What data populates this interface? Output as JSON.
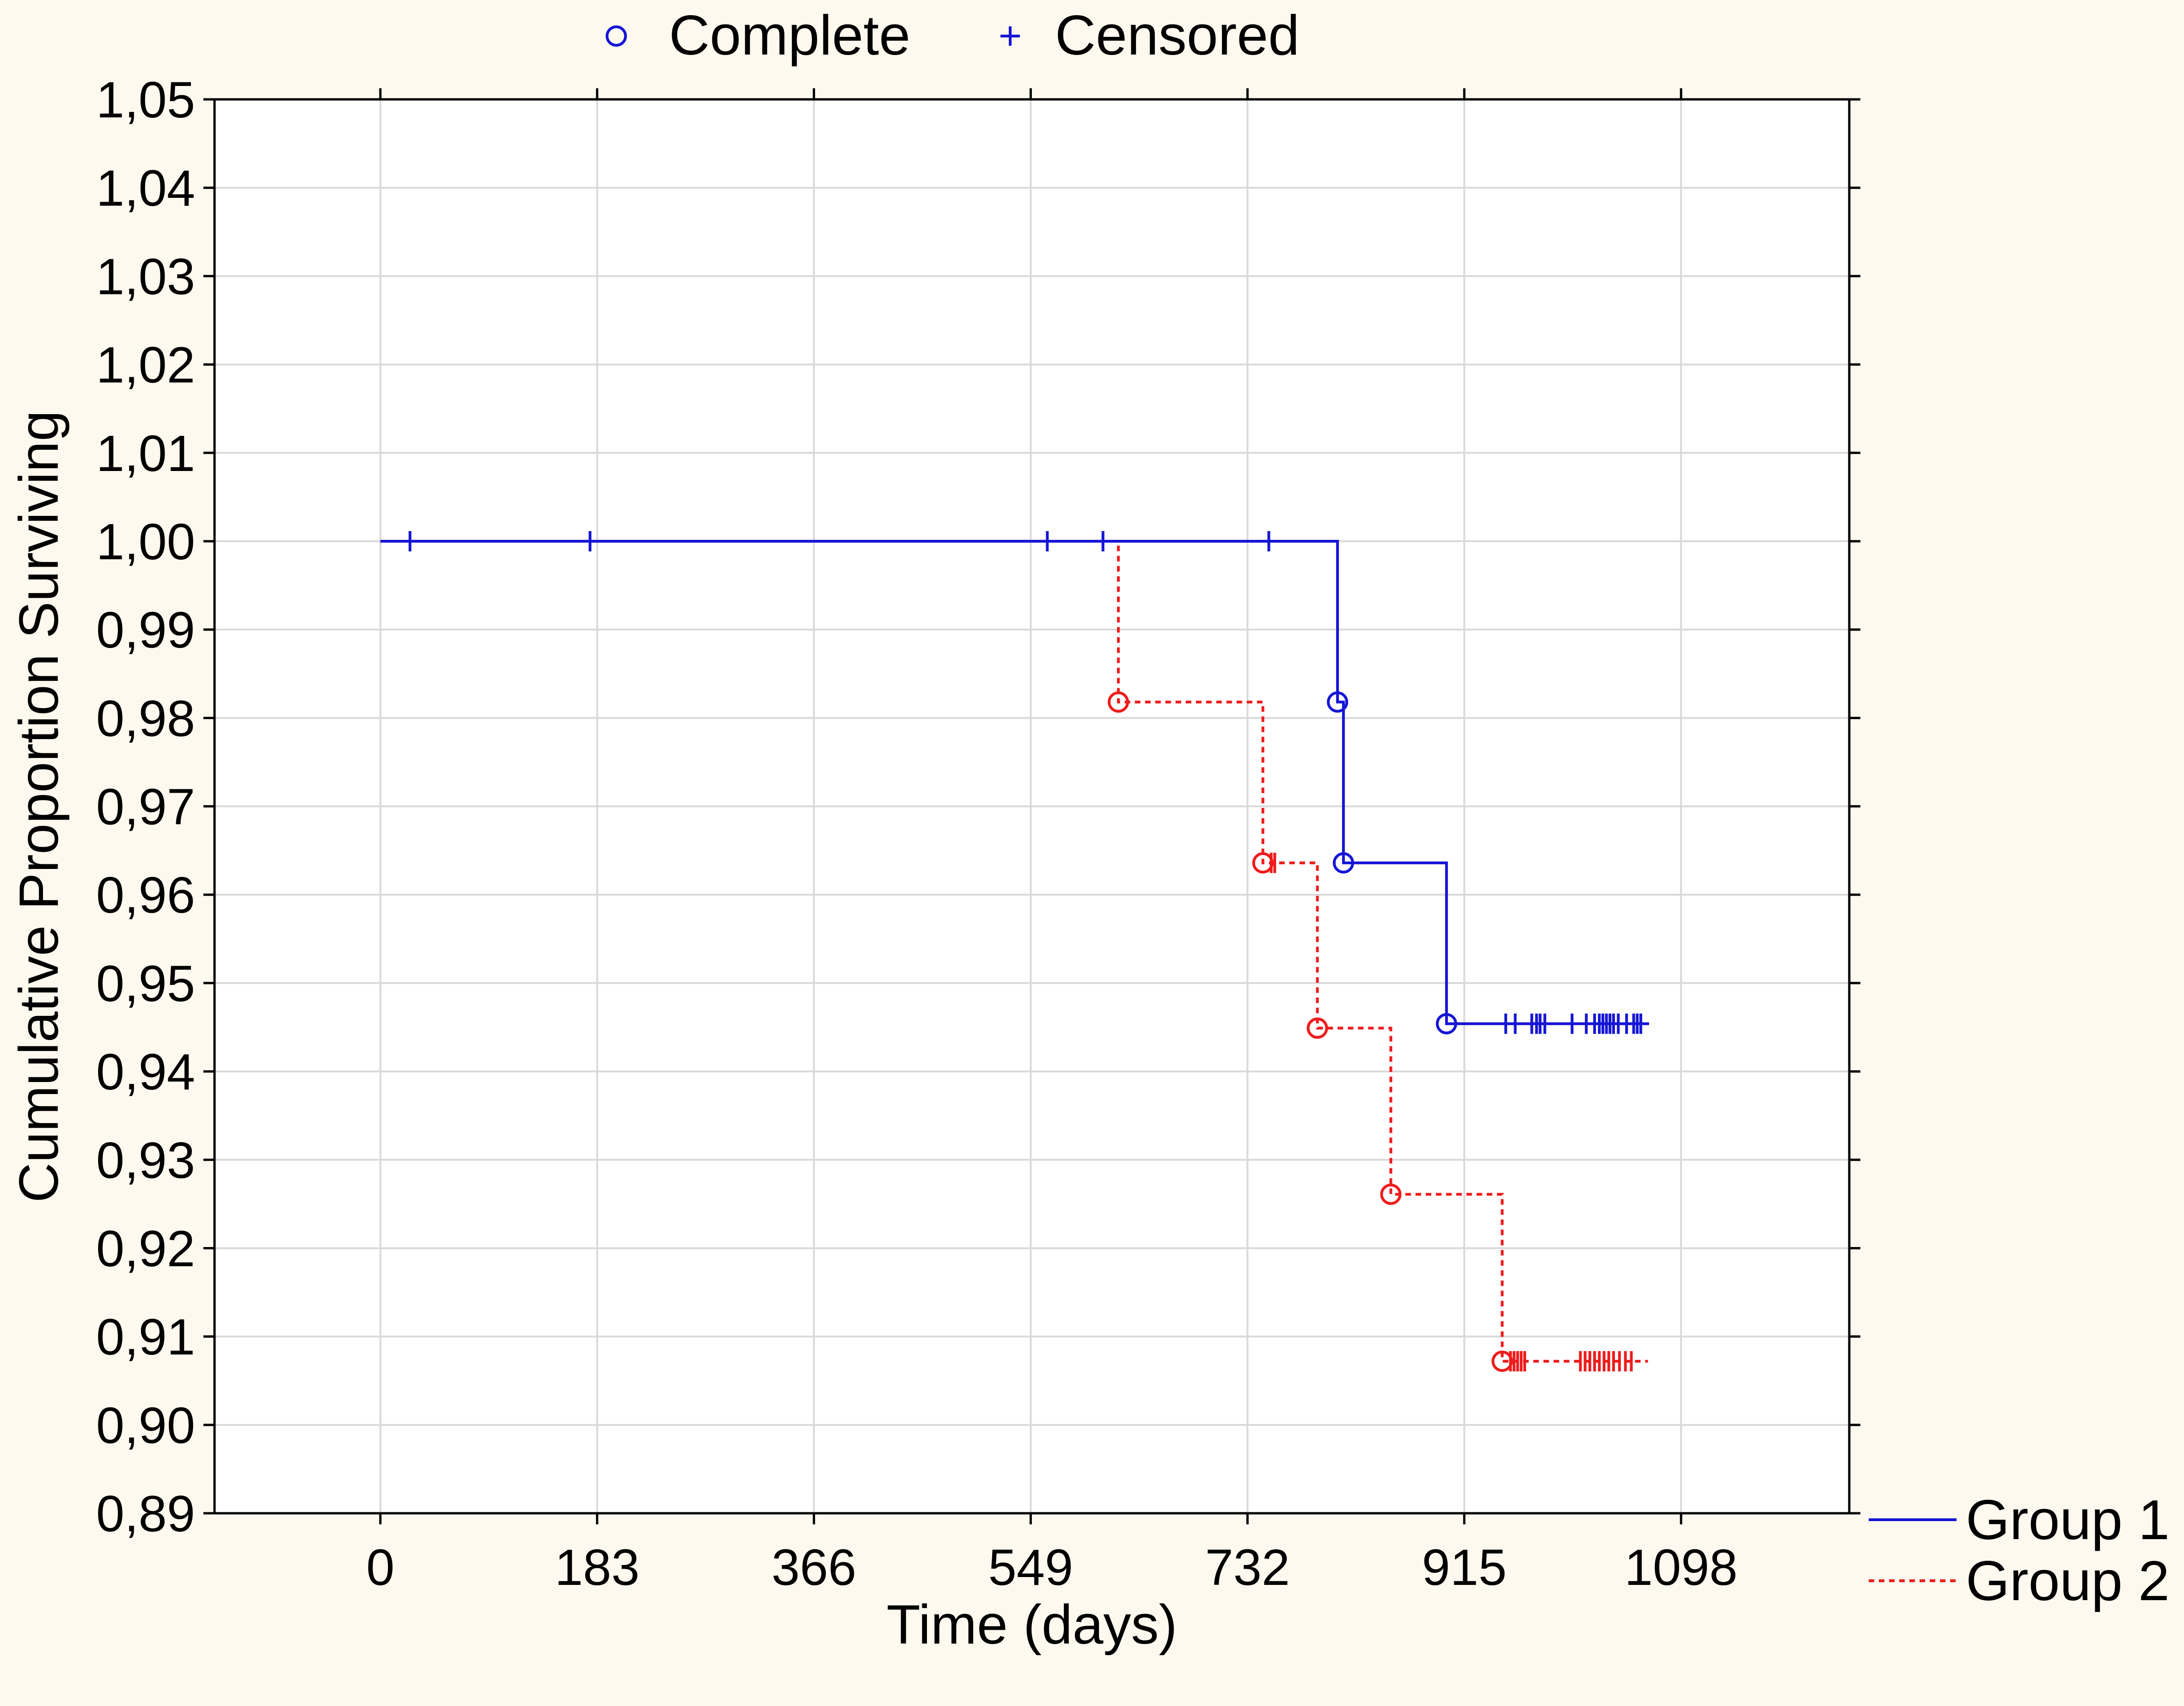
{
  "chart_data": {
    "type": "line",
    "subtype": "kaplan-meier step",
    "xlabel": "Time (days)",
    "ylabel": "Cumulative Proportion Surviving",
    "xlim": [
      -140,
      1240
    ],
    "ylim": [
      0.89,
      1.05
    ],
    "x_ticks": [
      0,
      183,
      366,
      549,
      732,
      915,
      1098
    ],
    "x_tick_labels": [
      "0",
      "183",
      "366",
      "549",
      "732",
      "915",
      "1098"
    ],
    "y_ticks": [
      0.89,
      0.9,
      0.91,
      0.92,
      0.93,
      0.94,
      0.95,
      0.96,
      0.97,
      0.98,
      0.99,
      1.0,
      1.01,
      1.02,
      1.03,
      1.04,
      1.05
    ],
    "y_tick_labels": [
      "0,89",
      "0,90",
      "0,91",
      "0,92",
      "0,93",
      "0,94",
      "0,95",
      "0,96",
      "0,97",
      "0,98",
      "0,99",
      "1,00",
      "1,01",
      "1,02",
      "1,03",
      "1,04",
      "1,05"
    ],
    "grid": true,
    "marker_legend": {
      "placement": "top-center",
      "complete_label": "Complete",
      "censored_label": "Censored",
      "complete_marker": "circle-icon",
      "censored_marker": "plus-icon"
    },
    "series_legend_placement": "bottom-right",
    "series": [
      {
        "name": "Group 1",
        "color": "#1515d6",
        "line_style": "solid",
        "steps": [
          {
            "x": 0,
            "y": 1.0
          },
          {
            "x": 808,
            "y": 0.9818
          },
          {
            "x": 813,
            "y": 0.9636
          },
          {
            "x": 900,
            "y": 0.9454
          },
          {
            "x": 1071,
            "y": 0.9454
          }
        ],
        "complete_events": [
          {
            "x": 808,
            "y": 0.9818
          },
          {
            "x": 813,
            "y": 0.9636
          },
          {
            "x": 900,
            "y": 0.9454
          }
        ],
        "censored": [
          {
            "x": 25,
            "y": 1.0
          },
          {
            "x": 177,
            "y": 1.0
          },
          {
            "x": 563,
            "y": 1.0
          },
          {
            "x": 610,
            "y": 1.0
          },
          {
            "x": 750,
            "y": 1.0
          },
          {
            "x": 950,
            "y": 0.9454
          },
          {
            "x": 958,
            "y": 0.9454
          },
          {
            "x": 972,
            "y": 0.9454
          },
          {
            "x": 976,
            "y": 0.9454
          },
          {
            "x": 979,
            "y": 0.9454
          },
          {
            "x": 983,
            "y": 0.9454
          },
          {
            "x": 1006,
            "y": 0.9454
          },
          {
            "x": 1018,
            "y": 0.9454
          },
          {
            "x": 1025,
            "y": 0.9454
          },
          {
            "x": 1029,
            "y": 0.9454
          },
          {
            "x": 1032,
            "y": 0.9454
          },
          {
            "x": 1035,
            "y": 0.9454
          },
          {
            "x": 1038,
            "y": 0.9454
          },
          {
            "x": 1041,
            "y": 0.9454
          },
          {
            "x": 1045,
            "y": 0.9454
          },
          {
            "x": 1052,
            "y": 0.9454
          },
          {
            "x": 1058,
            "y": 0.9454
          },
          {
            "x": 1061,
            "y": 0.9454
          },
          {
            "x": 1064,
            "y": 0.9454
          }
        ]
      },
      {
        "name": "Group 2",
        "color": "#ee1c1c",
        "line_style": "dotted",
        "steps": [
          {
            "x": 0,
            "y": 1.0
          },
          {
            "x": 623,
            "y": 0.9818
          },
          {
            "x": 745,
            "y": 0.9636
          },
          {
            "x": 791,
            "y": 0.9449
          },
          {
            "x": 853,
            "y": 0.9261
          },
          {
            "x": 947,
            "y": 0.9072
          },
          {
            "x": 1070,
            "y": 0.9072
          }
        ],
        "complete_events": [
          {
            "x": 623,
            "y": 0.9818
          },
          {
            "x": 745,
            "y": 0.9636
          },
          {
            "x": 791,
            "y": 0.9449
          },
          {
            "x": 853,
            "y": 0.9261
          },
          {
            "x": 947,
            "y": 0.9072
          }
        ],
        "censored": [
          {
            "x": 752,
            "y": 0.9636
          },
          {
            "x": 755,
            "y": 0.9636
          },
          {
            "x": 954,
            "y": 0.9072
          },
          {
            "x": 957,
            "y": 0.9072
          },
          {
            "x": 960,
            "y": 0.9072
          },
          {
            "x": 963,
            "y": 0.9072
          },
          {
            "x": 966,
            "y": 0.9072
          },
          {
            "x": 1013,
            "y": 0.9072
          },
          {
            "x": 1017,
            "y": 0.9072
          },
          {
            "x": 1021,
            "y": 0.9072
          },
          {
            "x": 1025,
            "y": 0.9072
          },
          {
            "x": 1029,
            "y": 0.9072
          },
          {
            "x": 1033,
            "y": 0.9072
          },
          {
            "x": 1037,
            "y": 0.9072
          },
          {
            "x": 1041,
            "y": 0.9072
          },
          {
            "x": 1046,
            "y": 0.9072
          },
          {
            "x": 1051,
            "y": 0.9072
          },
          {
            "x": 1056,
            "y": 0.9072
          }
        ]
      }
    ]
  }
}
